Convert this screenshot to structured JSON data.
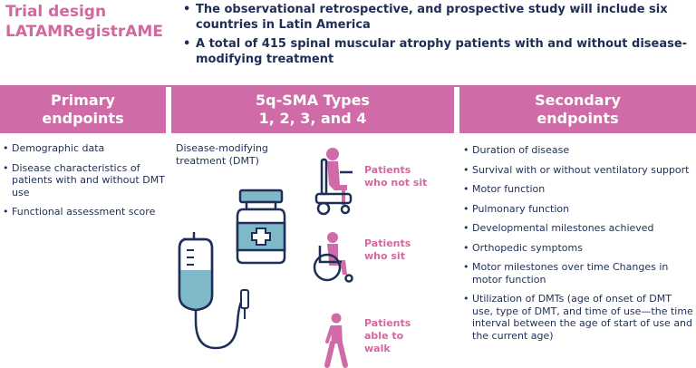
{
  "title": {
    "line1": "Trial design",
    "line2": "LATAMRegistrAME"
  },
  "intro": [
    "The observational retrospective, and prospective study will include six countries in Latin America",
    "A total of 415 spinal muscular atrophy patients with and without disease-modifying treatment"
  ],
  "columns": {
    "primary": {
      "line1": "Primary",
      "line2": "endpoints"
    },
    "types": {
      "line1": "5q-SMA Types",
      "line2": "1, 2, 3, and 4"
    },
    "secondary": {
      "line1": "Secondary",
      "line2": "endpoints"
    }
  },
  "primary_endpoints": [
    "Demographic data",
    "Disease characteristics of patients with and without DMT use",
    "Functional assessment score"
  ],
  "dmt_label": {
    "line1": "Disease-modifying",
    "line2": "treatment (DMT)"
  },
  "patient_groups": [
    {
      "line1": "Patients",
      "line2": "who not sit",
      "line3": "",
      "icon": "person-in-powered-wheelchair-icon"
    },
    {
      "line1": "Patients",
      "line2": "who sit",
      "line3": "",
      "icon": "person-in-wheelchair-icon"
    },
    {
      "line1": "Patients",
      "line2": "able to",
      "line3": "walk",
      "icon": "walking-person-icon"
    }
  ],
  "secondary_endpoints": [
    "Duration of disease",
    "Survival with or without ventilatory support",
    "Motor function",
    "Pulmonary function",
    "Developmental milestones achieved",
    "Orthopedic symptoms",
    "Motor milestones over time Changes in motor function",
    "Utilization of DMTs (age of onset of DMT use, type of DMT, and time of use—the time interval between the age of start of use and the current age)"
  ],
  "colors": {
    "accent": "#cf6ba6",
    "navy": "#1f2e57",
    "teal": "#7fb8c8",
    "pink_text": "#d4679f"
  },
  "icons": [
    "medicine-bottle-icon",
    "iv-bag-icon",
    "person-in-powered-wheelchair-icon",
    "person-in-wheelchair-icon",
    "walking-person-icon"
  ]
}
